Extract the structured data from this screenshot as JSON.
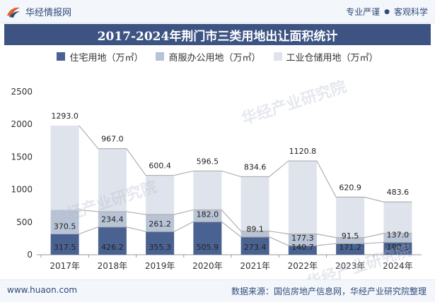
{
  "header": {
    "brand": "华经情报网",
    "tags": [
      "专业严谨",
      "客观科学"
    ]
  },
  "footer": {
    "url": "www.huaon.com",
    "source": "数据来源：国信房地产信息网，华经产业研究院整理"
  },
  "watermarks": [
    "华经产业研究院",
    "www.huaon.com"
  ],
  "colors": {
    "residential": "#4a6291",
    "commercial": "#b8c3d5",
    "industrial": "#dfe3ec",
    "title_bg": "#3d5483"
  },
  "chart_data": {
    "type": "bar",
    "stacked": true,
    "title": "2017-2024年荆门市三类用地出让面积统计",
    "categories": [
      "2017年",
      "2018年",
      "2019年",
      "2020年",
      "2021年",
      "2022年",
      "2023年",
      "2024年"
    ],
    "series": [
      {
        "name": "住宅用地（万㎡）",
        "values": [
          317.5,
          426.2,
          355.3,
          505.9,
          273.4,
          140.7,
          171.2,
          190.1
        ]
      },
      {
        "name": "商服办公用地（万㎡）",
        "values": [
          370.5,
          234.4,
          261.2,
          182.0,
          89.1,
          177.3,
          91.5,
          137.0
        ]
      },
      {
        "name": "工业仓储用地（万㎡）",
        "values": [
          1293.0,
          967.0,
          600.4,
          596.5,
          834.6,
          1120.8,
          620.9,
          483.6
        ]
      }
    ],
    "ylim": [
      0,
      2500
    ],
    "yticks": [
      0,
      500,
      1000,
      1500,
      2000,
      2500
    ],
    "xlabel": "",
    "ylabel": "",
    "legend_position": "top",
    "grid": false
  }
}
